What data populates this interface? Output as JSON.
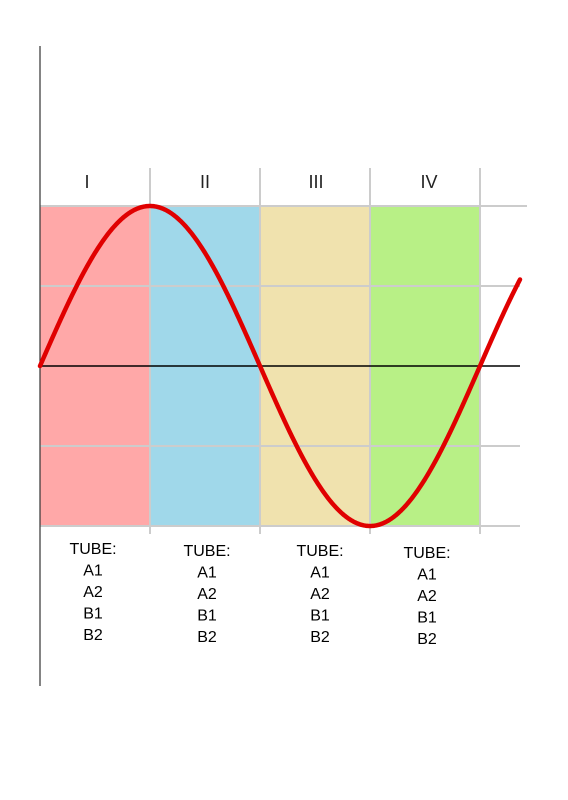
{
  "colors": {
    "wave": "#e00000",
    "grid": "#cccccc",
    "axis": "#000000",
    "vertical_axis": "#333333"
  },
  "quadrants": [
    {
      "numeral": "I",
      "fill": "#ffa8a8",
      "tube_lines": [
        "TUBE:",
        "A1",
        "A2",
        "B1",
        "B2"
      ]
    },
    {
      "numeral": "II",
      "fill": "#a0d8ea",
      "tube_lines": [
        "TUBE:",
        "A1",
        "A2",
        "B1",
        "B2"
      ]
    },
    {
      "numeral": "III",
      "fill": "#f0e2ae",
      "tube_lines": [
        "TUBE:",
        "A1",
        "A2",
        "B1",
        "B2"
      ]
    },
    {
      "numeral": "IV",
      "fill": "#b8f086",
      "tube_lines": [
        "TUBE:",
        "A1",
        "A2",
        "B1",
        "B2"
      ]
    }
  ],
  "wave": {
    "type": "sine",
    "amplitude": 1,
    "cycles_in_quadrants": 1
  }
}
